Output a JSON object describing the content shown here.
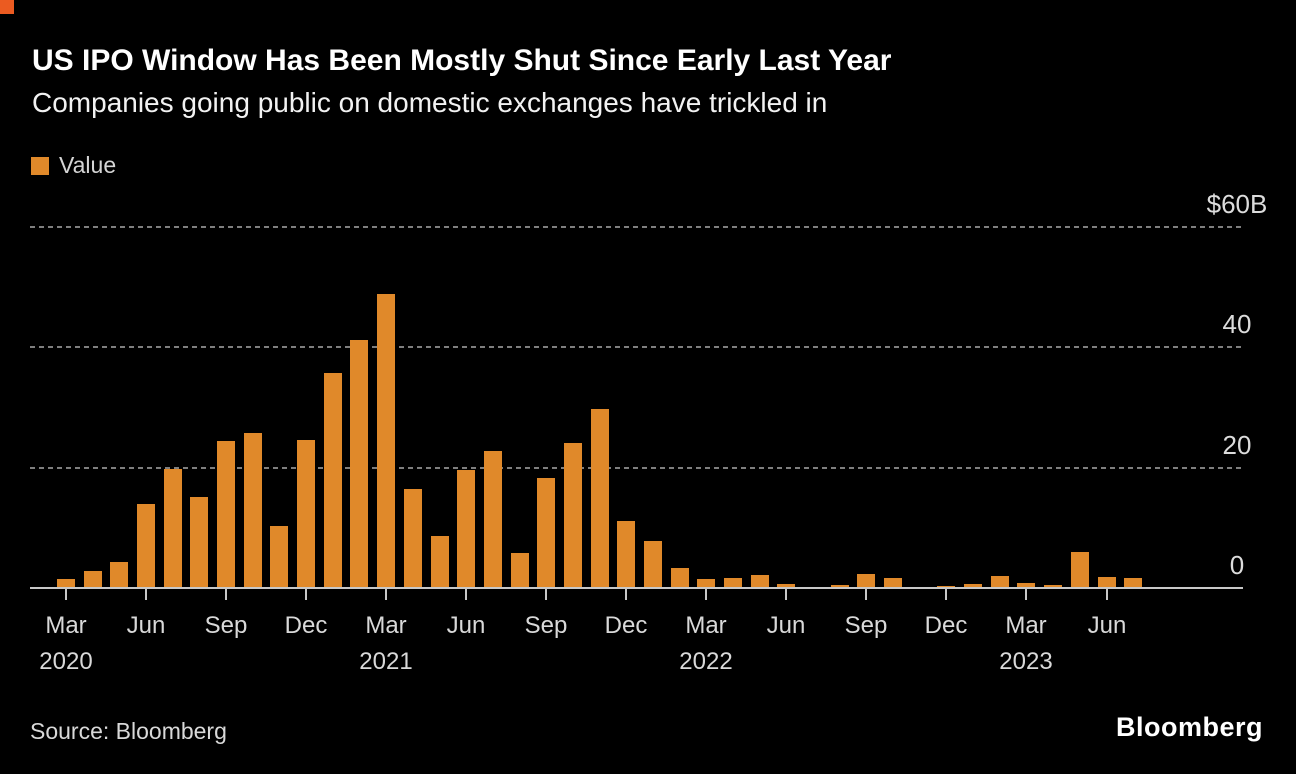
{
  "header": {
    "title": "US IPO Window Has Been Mostly Shut Since Early Last Year",
    "subtitle": "Companies going public on domestic exchanges have trickled in"
  },
  "legend": {
    "value_label": "Value"
  },
  "footer": {
    "source": "Source: Bloomberg",
    "logo": "Bloomberg"
  },
  "colors": {
    "background": "#000000",
    "bar": "#E0892A",
    "brand_square": "#EB5B21",
    "gridline": "#7F7F7F",
    "axis": "#C8C8C8",
    "text": "#FFFFFF",
    "muted_text": "#D9D9D9"
  },
  "chart_data": {
    "type": "bar",
    "title": "US IPO Window Has Been Mostly Shut Since Early Last Year",
    "subtitle": "Companies going public on domestic exchanges have trickled in",
    "series_name": "Value",
    "unit": "USD billions",
    "ylabel": "",
    "xlabel": "",
    "ylim": [
      0,
      60
    ],
    "grid": "horizontal-dashed",
    "legend_position": "top-left",
    "y_ticks": [
      {
        "label": "$60B",
        "value": 60
      },
      {
        "label": "40",
        "value": 40
      },
      {
        "label": "20",
        "value": 20
      },
      {
        "label": "0",
        "value": 0
      }
    ],
    "categories": [
      "Mar 2020",
      "Apr 2020",
      "May 2020",
      "Jun 2020",
      "Jul 2020",
      "Aug 2020",
      "Sep 2020",
      "Oct 2020",
      "Nov 2020",
      "Dec 2020",
      "Jan 2021",
      "Feb 2021",
      "Mar 2021",
      "Apr 2021",
      "May 2021",
      "Jun 2021",
      "Jul 2021",
      "Aug 2021",
      "Sep 2021",
      "Oct 2021",
      "Nov 2021",
      "Dec 2021",
      "Jan 2022",
      "Feb 2022",
      "Mar 2022",
      "Apr 2022",
      "May 2022",
      "Jun 2022",
      "Jul 2022",
      "Aug 2022",
      "Sep 2022",
      "Oct 2022",
      "Nov 2022",
      "Dec 2022",
      "Jan 2023",
      "Feb 2023",
      "Mar 2023",
      "Apr 2023",
      "May 2023",
      "Jun 2023",
      "Jul 2023"
    ],
    "values": [
      1.5,
      2.8,
      4.3,
      14.0,
      19.8,
      15.2,
      24.4,
      25.7,
      10.3,
      24.6,
      35.7,
      41.3,
      48.8,
      16.4,
      8.6,
      19.7,
      22.7,
      5.9,
      18.3,
      24.1,
      29.8,
      11.2,
      7.8,
      3.3,
      1.5,
      1.7,
      2.1,
      0.6,
      0.2,
      0.5,
      2.3,
      1.6,
      0.1,
      0.3,
      0.6,
      2.0,
      0.8,
      0.5,
      6.0,
      1.8,
      1.6
    ],
    "x_ticks": [
      {
        "month": "Mar",
        "year": "2020",
        "bar_index": 0
      },
      {
        "month": "Jun",
        "year": "",
        "bar_index": 3
      },
      {
        "month": "Sep",
        "year": "",
        "bar_index": 6
      },
      {
        "month": "Dec",
        "year": "",
        "bar_index": 9
      },
      {
        "month": "Mar",
        "year": "2021",
        "bar_index": 12
      },
      {
        "month": "Jun",
        "year": "",
        "bar_index": 15
      },
      {
        "month": "Sep",
        "year": "",
        "bar_index": 18
      },
      {
        "month": "Dec",
        "year": "",
        "bar_index": 21
      },
      {
        "month": "Mar",
        "year": "2022",
        "bar_index": 24
      },
      {
        "month": "Jun",
        "year": "",
        "bar_index": 27
      },
      {
        "month": "Sep",
        "year": "",
        "bar_index": 30
      },
      {
        "month": "Dec",
        "year": "",
        "bar_index": 33
      },
      {
        "month": "Mar",
        "year": "2023",
        "bar_index": 36
      },
      {
        "month": "Jun",
        "year": "",
        "bar_index": 39
      }
    ]
  }
}
